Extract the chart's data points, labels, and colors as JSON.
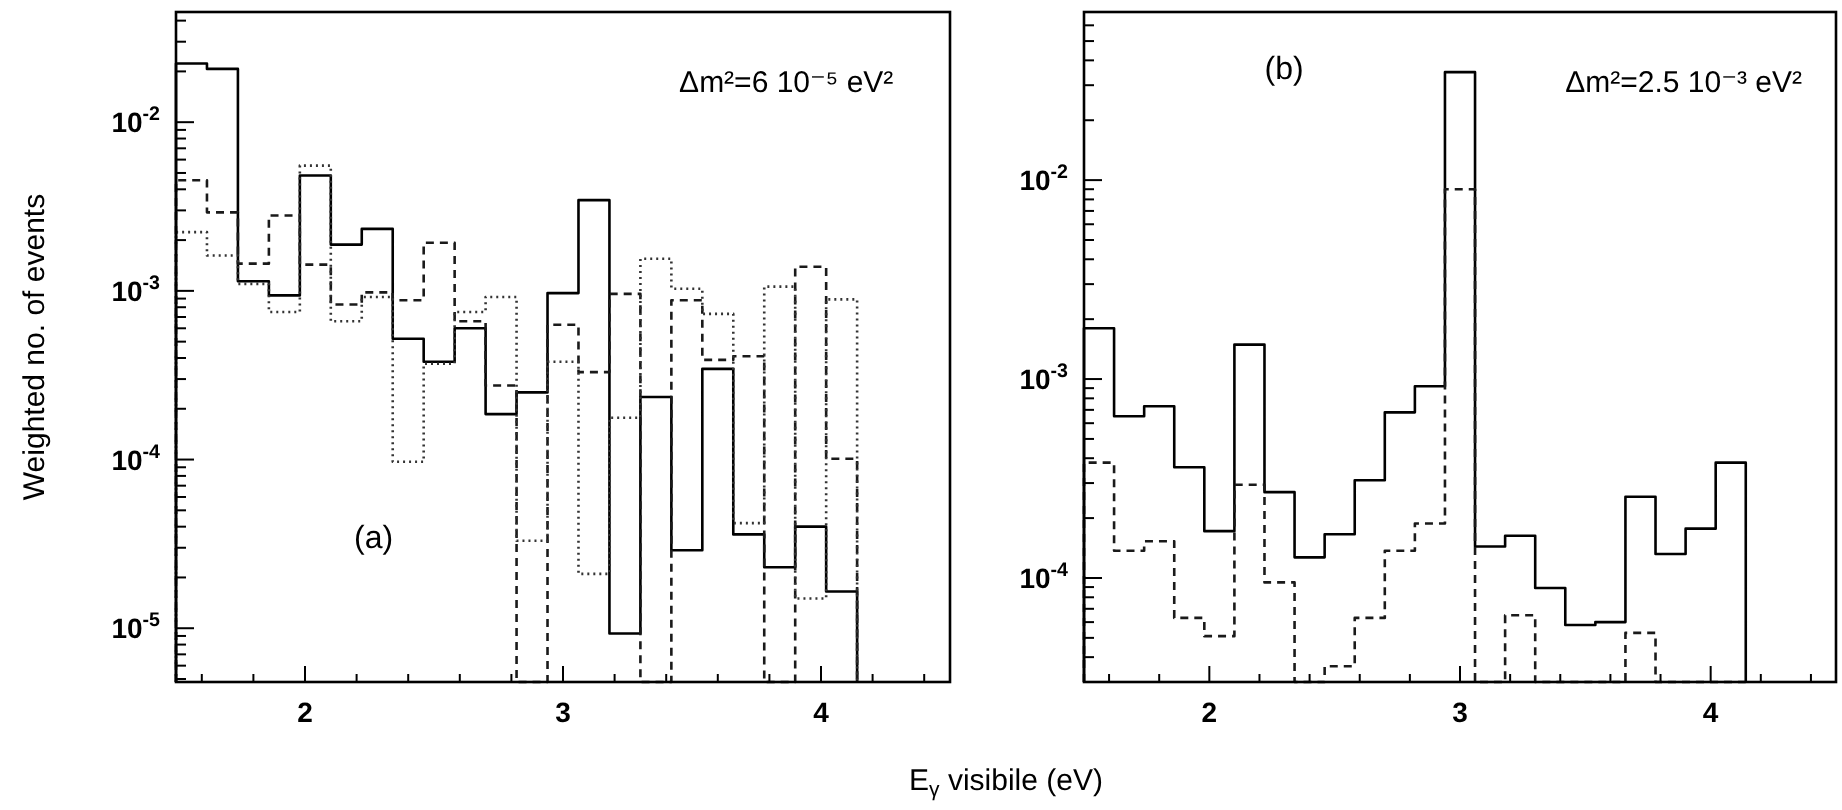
{
  "chart_data": [
    {
      "type": "histogram",
      "ylabel": "Weighted no. of events",
      "log": "y",
      "grid": false,
      "bins": [
        1.5,
        1.62,
        1.74,
        1.86,
        1.98,
        2.1,
        2.22,
        2.34,
        2.46,
        2.58,
        2.7,
        2.82,
        2.94,
        3.06,
        3.18,
        3.3,
        3.42,
        3.54,
        3.66,
        3.78,
        3.9,
        4.02,
        4.14
      ],
      "xlim": [
        1.5,
        4.5
      ],
      "xticks": [
        {
          "value": 1.6,
          "label": null
        },
        {
          "value": 1.8,
          "label": null
        },
        2,
        {
          "value": 2.2,
          "label": null
        },
        {
          "value": 2.4,
          "label": null
        },
        {
          "value": 2.6,
          "label": null
        },
        {
          "value": 2.8,
          "label": null
        },
        3,
        {
          "value": 3.2,
          "label": null
        },
        {
          "value": 3.4,
          "label": null
        },
        {
          "value": 3.6,
          "label": null
        },
        {
          "value": 3.8,
          "label": null
        },
        4,
        {
          "value": 4.2,
          "label": null
        },
        {
          "value": 4.4,
          "label": null
        }
      ],
      "ylim": [
        4.8e-06,
        0.045
      ],
      "yticks": [
        {
          "value": 5e-06,
          "label": null
        },
        {
          "value": 6e-06,
          "label": null
        },
        {
          "value": 7e-06,
          "label": null
        },
        {
          "value": 8e-06,
          "label": null
        },
        {
          "value": 9e-06,
          "label": null
        },
        {
          "value": 1e-05,
          "label": "10$^{-5}$"
        },
        {
          "value": 2e-05,
          "label": null
        },
        {
          "value": 3e-05,
          "label": null
        },
        {
          "value": 4e-05,
          "label": null
        },
        {
          "value": 5e-05,
          "label": null
        },
        {
          "value": 6e-05,
          "label": null
        },
        {
          "value": 7e-05,
          "label": null
        },
        {
          "value": 8e-05,
          "label": null
        },
        {
          "value": 9e-05,
          "label": null
        },
        {
          "value": 0.0001,
          "label": "10$^{-4}$"
        },
        {
          "value": 0.0002,
          "label": null
        },
        {
          "value": 0.0003,
          "label": null
        },
        {
          "value": 0.0004,
          "label": null
        },
        {
          "value": 0.0005,
          "label": null
        },
        {
          "value": 0.0006,
          "label": null
        },
        {
          "value": 0.0007,
          "label": null
        },
        {
          "value": 0.0008,
          "label": null
        },
        {
          "value": 0.0009,
          "label": null
        },
        {
          "value": 0.001,
          "label": "10$^{-3}$"
        },
        {
          "value": 0.002,
          "label": null
        },
        {
          "value": 0.003,
          "label": null
        },
        {
          "value": 0.004,
          "label": null
        },
        {
          "value": 0.005,
          "label": null
        },
        {
          "value": 0.006,
          "label": null
        },
        {
          "value": 0.007,
          "label": null
        },
        {
          "value": 0.008,
          "label": null
        },
        {
          "value": 0.009,
          "label": null
        },
        {
          "value": 0.01,
          "label": "10$^{-2}$"
        },
        {
          "value": 0.02,
          "label": null
        },
        {
          "value": 0.03,
          "label": null
        },
        {
          "value": 0.04,
          "label": null
        }
      ],
      "series": [
        {
          "color": "#000000",
          "line_style": "solid",
          "values": [
            0.0223,
            0.0207,
            0.00114,
            0.00094,
            0.00483,
            0.00188,
            0.00233,
            0.00052,
            0.00038,
            0.0006,
            0.000186,
            0.00025,
            0.00097,
            0.00345,
            9.3e-06,
            0.000235,
            2.9e-05,
            0.000345,
            3.6e-05,
            2.3e-05,
            4e-05,
            1.65e-05
          ]
        },
        {
          "color": "#1a1a1a",
          "line_style": "dashed",
          "values": [
            0.00453,
            0.00292,
            0.00145,
            0.0028,
            0.00143,
            0.00083,
            0.00098,
            0.00088,
            0.00193,
            0.00066,
            0.000275,
            null,
            0.00063,
            0.00033,
            0.00096,
            null,
            0.00088,
            0.00039,
            0.00041,
            null,
            0.00139,
            0.000101
          ]
        },
        {
          "color": "#333333",
          "line_style": "dotted",
          "values": [
            0.00223,
            0.00162,
            0.0011,
            0.00075,
            0.00553,
            0.00066,
            0.00092,
            9.7e-05,
            0.00037,
            0.00075,
            0.00092,
            3.3e-05,
            0.00038,
            2.1e-05,
            0.000177,
            0.00155,
            0.00103,
            0.00073,
            4.2e-05,
            0.00106,
            1.5e-05,
            0.00089
          ]
        }
      ],
      "annotations": [
        "Δm²=6 10⁻⁵ eV²",
        "(a)"
      ]
    },
    {
      "type": "histogram",
      "xlabel": "E$_{γ}$ visibile (eV)",
      "log": "y",
      "grid": false,
      "bins": [
        1.5,
        1.62,
        1.74,
        1.86,
        1.98,
        2.1,
        2.22,
        2.34,
        2.46,
        2.58,
        2.7,
        2.82,
        2.94,
        3.06,
        3.18,
        3.3,
        3.42,
        3.54,
        3.66,
        3.78,
        3.9,
        4.02,
        4.14
      ],
      "xlim": [
        1.5,
        4.5
      ],
      "xticks": [
        {
          "value": 1.6,
          "label": null
        },
        {
          "value": 1.8,
          "label": null
        },
        2,
        {
          "value": 2.2,
          "label": null
        },
        {
          "value": 2.4,
          "label": null
        },
        {
          "value": 2.6,
          "label": null
        },
        {
          "value": 2.8,
          "label": null
        },
        3,
        {
          "value": 3.2,
          "label": null
        },
        {
          "value": 3.4,
          "label": null
        },
        {
          "value": 3.6,
          "label": null
        },
        {
          "value": 3.8,
          "label": null
        },
        4,
        {
          "value": 4.2,
          "label": null
        },
        {
          "value": 4.4,
          "label": null
        }
      ],
      "ylim": [
        3e-05,
        0.07
      ],
      "yticks": [
        {
          "value": 3e-05,
          "label": null
        },
        {
          "value": 4e-05,
          "label": null
        },
        {
          "value": 5e-05,
          "label": null
        },
        {
          "value": 6e-05,
          "label": null
        },
        {
          "value": 7e-05,
          "label": null
        },
        {
          "value": 8e-05,
          "label": null
        },
        {
          "value": 9e-05,
          "label": null
        },
        {
          "value": 0.0001,
          "label": "10$^{-4}$"
        },
        {
          "value": 0.0002,
          "label": null
        },
        {
          "value": 0.0003,
          "label": null
        },
        {
          "value": 0.0004,
          "label": null
        },
        {
          "value": 0.0005,
          "label": null
        },
        {
          "value": 0.0006,
          "label": null
        },
        {
          "value": 0.0007,
          "label": null
        },
        {
          "value": 0.0008,
          "label": null
        },
        {
          "value": 0.0009,
          "label": null
        },
        {
          "value": 0.001,
          "label": "10$^{-3}$"
        },
        {
          "value": 0.002,
          "label": null
        },
        {
          "value": 0.003,
          "label": null
        },
        {
          "value": 0.004,
          "label": null
        },
        {
          "value": 0.005,
          "label": null
        },
        {
          "value": 0.006,
          "label": null
        },
        {
          "value": 0.007,
          "label": null
        },
        {
          "value": 0.008,
          "label": null
        },
        {
          "value": 0.009,
          "label": null
        },
        {
          "value": 0.01,
          "label": "10$^{-2}$"
        },
        {
          "value": 0.02,
          "label": null
        },
        {
          "value": 0.03,
          "label": null
        },
        {
          "value": 0.04,
          "label": null
        },
        {
          "value": 0.05,
          "label": null
        },
        {
          "value": 0.06,
          "label": null
        },
        {
          "value": 0.07,
          "label": null
        }
      ],
      "series": [
        {
          "color": "#000000",
          "line_style": "solid",
          "values": [
            0.0018,
            0.00065,
            0.00073,
            0.00036,
            0.000172,
            0.00149,
            0.00027,
            0.000127,
            0.000166,
            0.00031,
            0.00068,
            0.00092,
            0.0349,
            0.000144,
            0.000163,
            8.9e-05,
            5.8e-05,
            6e-05,
            0.000256,
            0.000132,
            0.000177,
            0.00038
          ]
        },
        {
          "color": "#1a1a1a",
          "line_style": "dashed",
          "values": [
            0.00038,
            0.000137,
            0.000153,
            6.3e-05,
            5.1e-05,
            0.000294,
            9.5e-05,
            null,
            3.6e-05,
            6.3e-05,
            0.000137,
            0.000188,
            0.009,
            null,
            6.5e-05,
            null,
            null,
            null,
            5.3e-05,
            null,
            null,
            null
          ]
        }
      ],
      "annotations": [
        "(b)",
        "Δm²=2.5 10⁻³ eV²"
      ]
    }
  ]
}
